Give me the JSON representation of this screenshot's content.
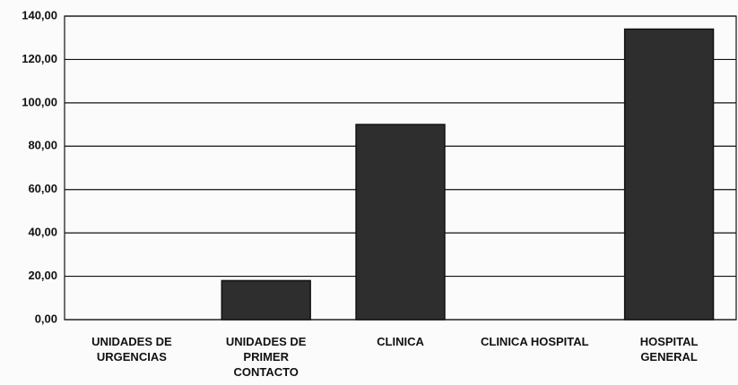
{
  "chart_data": {
    "type": "bar",
    "categories": [
      "UNIDADES DE URGENCIAS",
      "UNIDADES DE PRIMER CONTACTO",
      "CLINICA",
      "CLINICA HOSPITAL",
      "HOSPITAL GENERAL"
    ],
    "values": [
      0,
      18,
      90,
      0,
      134
    ],
    "color": "#2e2e2e",
    "ylim": [
      0,
      140
    ],
    "yticks": [
      {
        "value": 0,
        "label": "0,00"
      },
      {
        "value": 20,
        "label": "20,00"
      },
      {
        "value": 40,
        "label": "40,00"
      },
      {
        "value": 60,
        "label": "60,00"
      },
      {
        "value": 80,
        "label": "80,00"
      },
      {
        "value": 100,
        "label": "100,00"
      },
      {
        "value": 120,
        "label": "120,00"
      },
      {
        "value": 140,
        "label": "140,00"
      }
    ],
    "grid": true
  }
}
